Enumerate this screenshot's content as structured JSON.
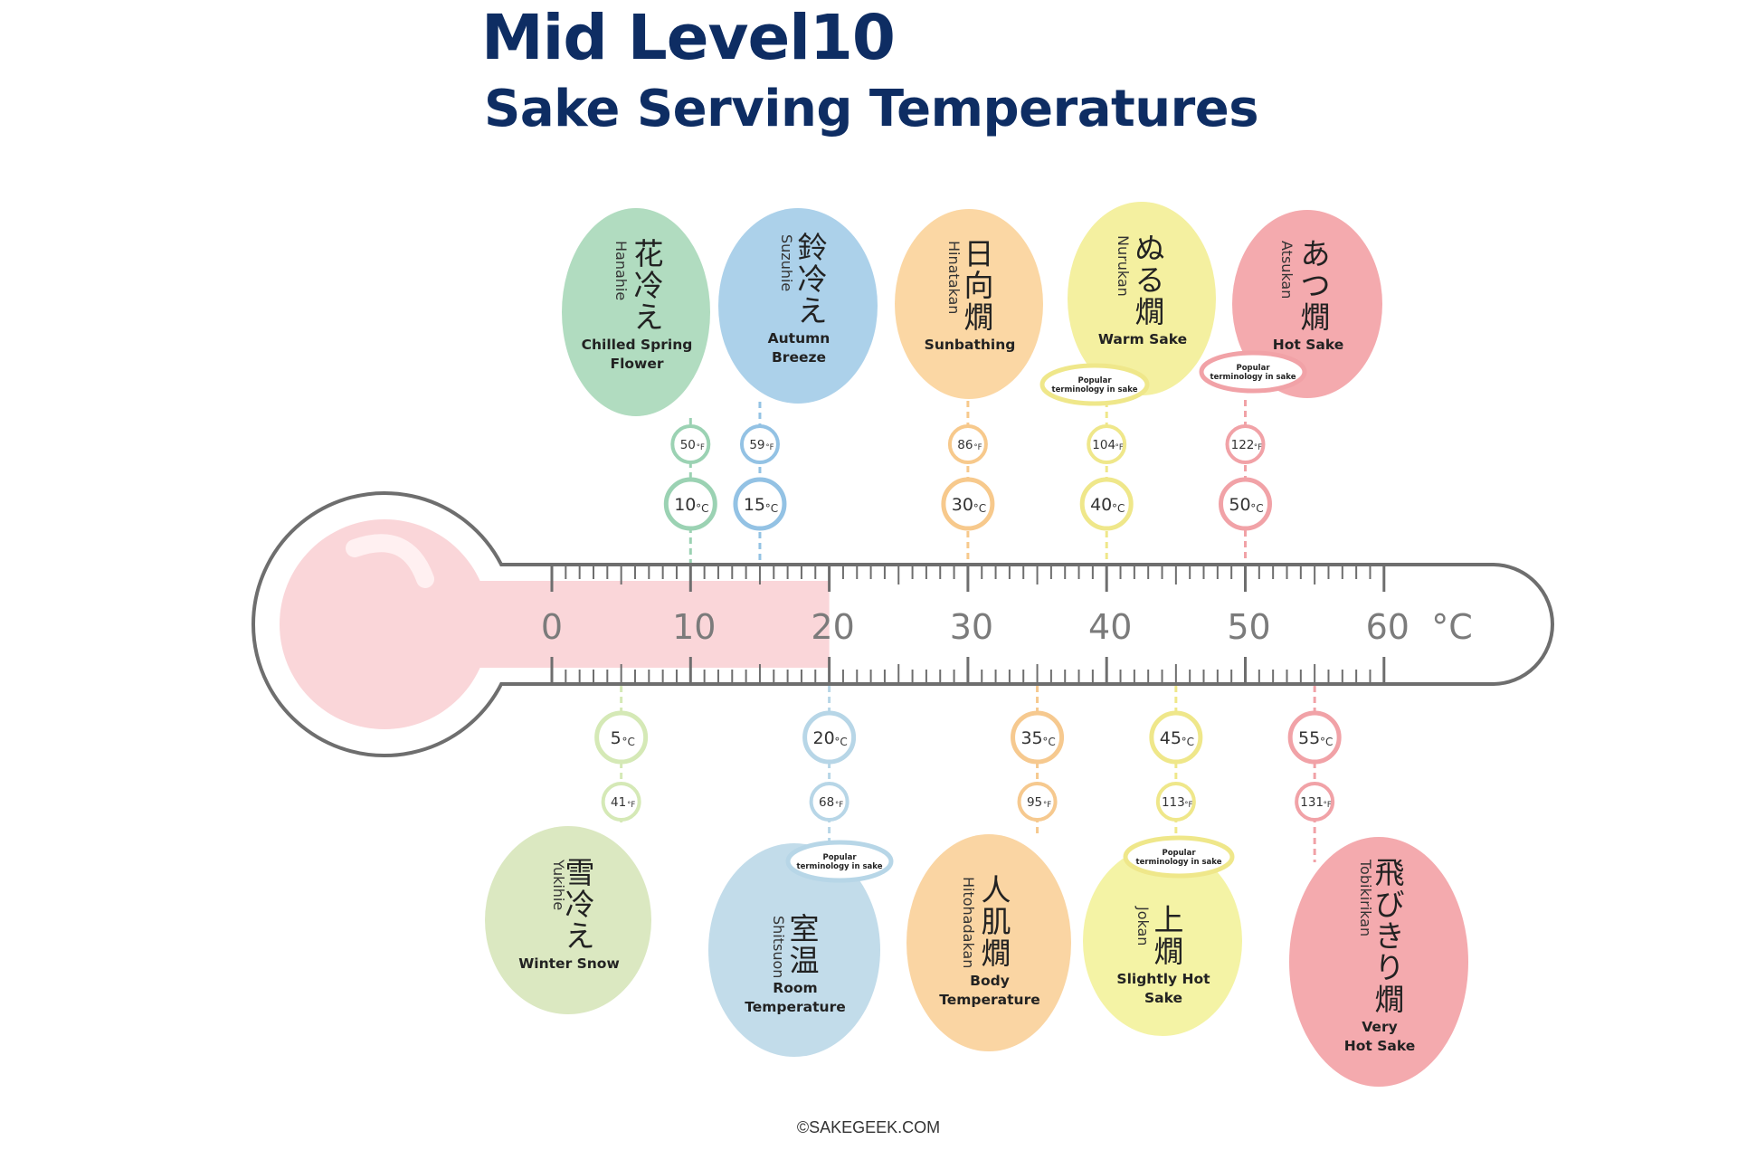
{
  "title": "Mid Level10",
  "subtitle": "Sake Serving Temperatures",
  "footer": "©SAKEGEEK.COM",
  "scale": {
    "unit": "°C",
    "labels": [
      "0",
      "10",
      "20",
      "30",
      "40",
      "50",
      "60"
    ],
    "min": 0,
    "max": 60,
    "fill_to": 20
  },
  "popular_note": [
    "Popular",
    "terminology in sake"
  ],
  "colors": {
    "outline": "#6e6e6e",
    "bulb_fill": "#fad6d9",
    "tube_fill": "#fad6d9",
    "title": "#0e2d63"
  },
  "temperatures": [
    {
      "id": "hanahie",
      "celsius": 10,
      "c_label": "10",
      "f_label": "50",
      "kanji": "花冷え",
      "romaji": "Hanahie",
      "english": [
        "Chilled Spring",
        "Flower"
      ],
      "position": "top",
      "fill": "#b1dcc0",
      "line": "#9bd2b3",
      "popular": false
    },
    {
      "id": "suzuhie",
      "celsius": 15,
      "c_label": "15",
      "f_label": "59",
      "kanji": "鈴冷え",
      "romaji": "Suzuhie",
      "english": [
        "Autumn",
        "Breeze"
      ],
      "position": "top",
      "fill": "#acd1ea",
      "line": "#93c2e4",
      "popular": false
    },
    {
      "id": "hinatakan",
      "celsius": 30,
      "c_label": "30",
      "f_label": "86",
      "kanji": "日向燗",
      "romaji": "Hinatakan",
      "english": [
        "Sunbathing"
      ],
      "position": "top",
      "fill": "#fbd7a4",
      "line": "#f7c98c",
      "popular": false
    },
    {
      "id": "nurukan",
      "celsius": 40,
      "c_label": "40",
      "f_label": "104",
      "kanji": "ぬる燗",
      "romaji": "Nurukan",
      "english": [
        "Warm Sake"
      ],
      "position": "top",
      "fill": "#f4f0a0",
      "line": "#efe78a",
      "popular": true
    },
    {
      "id": "atsukan",
      "celsius": 50,
      "c_label": "50",
      "f_label": "122",
      "kanji": "あつ燗",
      "romaji": "Atsukan",
      "english": [
        "Hot Sake"
      ],
      "position": "top",
      "fill": "#f4aaae",
      "line": "#f1a2a7",
      "popular": true
    },
    {
      "id": "yukihie",
      "celsius": 5,
      "c_label": "5",
      "f_label": "41",
      "kanji": "雪冷え",
      "romaji": "Yukihie",
      "english": [
        "Winter Snow"
      ],
      "position": "bottom",
      "fill": "#dbe8c1",
      "line": "#d5e9b6",
      "popular": false
    },
    {
      "id": "shitsuon",
      "celsius": 20,
      "c_label": "20",
      "f_label": "68",
      "kanji": "室温",
      "romaji": "Shitsuon",
      "english": [
        "Room",
        "Temperature"
      ],
      "position": "bottom",
      "fill": "#c2dcea",
      "line": "#b7d6e7",
      "popular": true
    },
    {
      "id": "hitohadakan",
      "celsius": 35,
      "c_label": "35",
      "f_label": "95",
      "kanji": "人肌燗",
      "romaji": "Hitohadakan",
      "english": [
        "Body",
        "Temperature"
      ],
      "position": "bottom",
      "fill": "#fad5a3",
      "line": "#f6c98f",
      "popular": false
    },
    {
      "id": "jokan",
      "celsius": 45,
      "c_label": "45",
      "f_label": "113",
      "kanji": "上燗",
      "romaji": "Jokan",
      "english": [
        "Slightly Hot",
        "Sake"
      ],
      "position": "bottom",
      "fill": "#f4f3a5",
      "line": "#efe78a",
      "popular": true
    },
    {
      "id": "tobikirikan",
      "celsius": 55,
      "c_label": "55",
      "f_label": "131",
      "kanji": "飛びきり燗",
      "romaji": "Tobikirikan",
      "english": [
        "Very",
        "Hot Sake"
      ],
      "position": "bottom",
      "fill": "#f4aaae",
      "line": "#f1a2a7",
      "popular": false
    }
  ]
}
